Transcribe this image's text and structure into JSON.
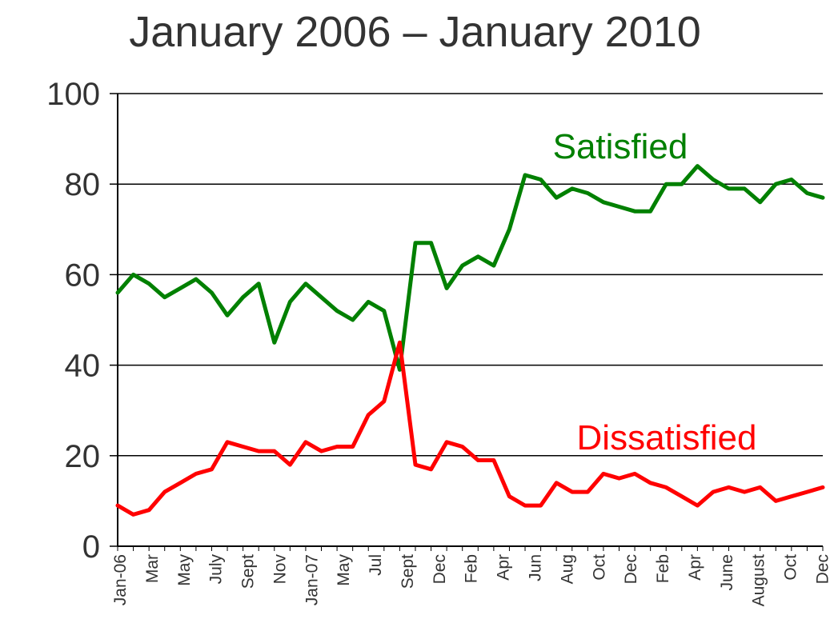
{
  "chart_data": {
    "type": "line",
    "title": "January 2006 – January 2010",
    "xlabel": "",
    "ylabel": "",
    "ylim": [
      0,
      100
    ],
    "yticks": [
      "0",
      "20",
      "40",
      "60",
      "80",
      "100"
    ],
    "grid": true,
    "x_tick_labels": [
      "Jan-06",
      "Mar",
      "May",
      "July",
      "Sept",
      "Nov",
      "Jan-07",
      "May",
      "Jul",
      "Sept",
      "Dec",
      "Feb",
      "Apr",
      "Jun",
      "Aug",
      "Oct",
      "Dec",
      "Feb",
      "Apr",
      "June",
      "August",
      "Oct",
      "Dec"
    ],
    "series": [
      {
        "name": "Satisfied",
        "color": "#008000",
        "values": [
          56,
          60,
          58,
          55,
          57,
          59,
          56,
          51,
          55,
          58,
          45,
          54,
          58,
          55,
          52,
          50,
          54,
          52,
          39,
          67,
          67,
          57,
          62,
          64,
          62,
          70,
          82,
          81,
          77,
          79,
          78,
          76,
          75,
          74,
          74,
          80,
          80,
          84,
          81,
          79,
          79,
          76,
          80,
          81,
          78,
          77
        ]
      },
      {
        "name": "Dissatisfied",
        "color": "#ff0000",
        "values": [
          9,
          7,
          8,
          12,
          14,
          16,
          17,
          23,
          22,
          21,
          21,
          18,
          23,
          21,
          22,
          22,
          29,
          32,
          45,
          18,
          17,
          23,
          22,
          19,
          19,
          11,
          9,
          9,
          14,
          12,
          12,
          16,
          15,
          16,
          14,
          13,
          11,
          9,
          12,
          13,
          12,
          13,
          10,
          11,
          12,
          13
        ]
      }
    ]
  }
}
